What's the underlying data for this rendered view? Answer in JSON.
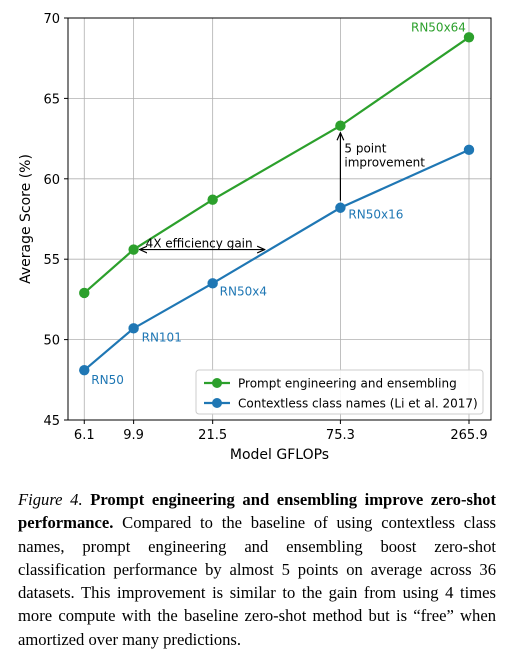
{
  "chart_data": {
    "type": "line",
    "xlabel": "Model GFLOPs",
    "ylabel": "Average Score (%)",
    "ylim": [
      45,
      70
    ],
    "x_ticks": [
      "6.1",
      "9.9",
      "21.5",
      "75.3",
      "265.9"
    ],
    "y_ticks": [
      45,
      50,
      55,
      60,
      65,
      70
    ],
    "grid": true,
    "legend_position": "lower-right",
    "series": [
      {
        "name": "Prompt engineering and ensembling",
        "color": "#2ca02c",
        "x": [
          "6.1",
          "9.9",
          "21.5",
          "75.3",
          "265.9"
        ],
        "y": [
          52.9,
          55.6,
          58.7,
          63.3,
          68.8
        ],
        "point_labels": [
          "",
          "",
          "",
          "",
          "RN50x64"
        ]
      },
      {
        "name": "Contextless class names (Li et al. 2017)",
        "color": "#1f77b4",
        "x": [
          "6.1",
          "9.9",
          "21.5",
          "75.3",
          "265.9"
        ],
        "y": [
          48.1,
          50.7,
          53.5,
          58.2,
          61.8
        ],
        "point_labels": [
          "RN50",
          "RN101",
          "RN50x4",
          "RN50x16",
          ""
        ]
      }
    ],
    "annotations": [
      {
        "id": "efficiency",
        "text": "4X efficiency gain",
        "type": "horizontal-arrow",
        "from_x": "9.9",
        "to_x": "21.5",
        "y": 55.6
      },
      {
        "id": "improvement",
        "lines": [
          "5 point",
          "improvement"
        ],
        "type": "vertical-arrow",
        "x": "75.3",
        "from_y": 58.2,
        "to_y": 63.3
      }
    ]
  },
  "caption": {
    "figure_label": "Figure 4.",
    "bold_text": "Prompt engineering and ensembling improve zero-shot performance.",
    "body_text": "Compared to the baseline of using contextless class names, prompt engineering and ensembling boost zero-shot classification performance by almost 5 points on average across 36 datasets. This improvement is similar to the gain from using 4 times more compute with the baseline zero-shot method but is “free” when amortized over many predictions."
  }
}
